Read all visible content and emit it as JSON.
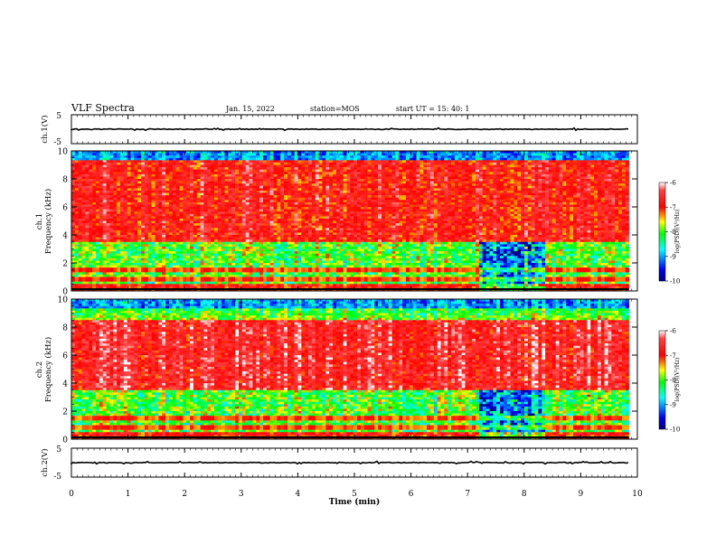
{
  "header": {
    "title": "VLF Spectra",
    "date": "Jan. 15, 2022",
    "station": "station=MOS",
    "start": "start UT =  15: 40: 1"
  },
  "colors": {
    "scale": [
      "#000080",
      "#0000ff",
      "#00ffff",
      "#00ff00",
      "#ffff00",
      "#ff0000",
      "#ffffff"
    ]
  },
  "chart_data": [
    {
      "type": "line",
      "panel": "ch1-waveform",
      "ylabel": "ch.1(V)",
      "ylim": [
        -5,
        5
      ],
      "y_tick_labels": [
        "5",
        "-5"
      ],
      "xlim": [
        0,
        10
      ],
      "baseline_value": 0
    },
    {
      "type": "heatmap",
      "panel": "ch1-spectrogram",
      "ylabel": "ch.1\nFrequency (kHz)",
      "ylabel_lines": [
        "ch.1",
        "Frequency (kHz)"
      ],
      "xlim": [
        0,
        10
      ],
      "ylim": [
        0,
        10
      ],
      "y_ticks": [
        0,
        2,
        4,
        6,
        8,
        10
      ],
      "data_end_min": 9.85,
      "colorbar": {
        "range": [
          -10,
          -6
        ],
        "ticks": [
          -6,
          -7,
          -8,
          -9,
          -10
        ],
        "label": "log(PSD)(V²/Hz)"
      },
      "dominant_band_khz": [
        3.5,
        9.5
      ],
      "quiet_interval_min": [
        7.2,
        8.4
      ]
    },
    {
      "type": "heatmap",
      "panel": "ch2-spectrogram",
      "ylabel": "ch.2\nFrequency (kHz)",
      "ylabel_lines": [
        "ch.2",
        "Frequency (kHz)"
      ],
      "xlim": [
        0,
        10
      ],
      "ylim": [
        0,
        10
      ],
      "y_ticks": [
        0,
        2,
        4,
        6,
        8,
        10
      ],
      "data_end_min": 9.85,
      "colorbar": {
        "range": [
          -10,
          -6
        ],
        "ticks": [
          -6,
          -7,
          -8,
          -9,
          -10
        ],
        "label": "log(PSD)(V²/Hz)"
      },
      "dominant_band_khz": [
        3.5,
        8.5
      ],
      "quiet_interval_min": [
        7.2,
        8.4
      ]
    },
    {
      "type": "line",
      "panel": "ch2-waveform",
      "ylabel": "ch.2(V)",
      "ylim": [
        -5,
        5
      ],
      "y_tick_labels": [
        "5",
        "-5"
      ],
      "xlim": [
        0,
        10
      ],
      "baseline_value": 0
    }
  ],
  "xaxis": {
    "label": "Time (min)",
    "ticks": [
      "0",
      "1",
      "2",
      "3",
      "4",
      "5",
      "6",
      "7",
      "8",
      "9",
      "10"
    ]
  }
}
